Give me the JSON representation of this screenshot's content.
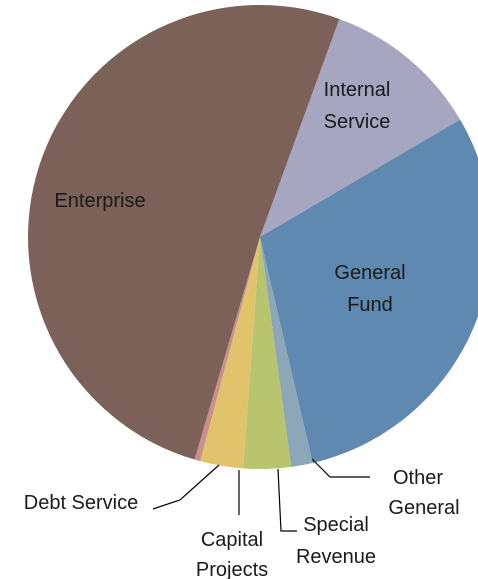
{
  "chart_data": {
    "type": "pie",
    "title": "",
    "categories": [
      "Internal Service",
      "General Fund",
      "Other General",
      "Special Revenue",
      "Capital Projects",
      "Debt Service",
      "Enterprise"
    ],
    "labels": {
      "internal_service": [
        "Internal",
        "Service"
      ],
      "general_fund": [
        "General",
        "Fund"
      ],
      "other_general": [
        "Other",
        "General"
      ],
      "special_revenue": [
        "Special",
        "Revenue"
      ],
      "capital_projects": [
        "Capital",
        "Projects"
      ],
      "debt_service": [
        "Debt Service"
      ],
      "enterprise": [
        "Enterprise"
      ]
    },
    "values": [
      11.0,
      29.8,
      1.5,
      3.3,
      3.0,
      0.4,
      51.0
    ],
    "colors": [
      "#a6a6c0",
      "#5f89b0",
      "#8ea7b8",
      "#b8c46e",
      "#e1c36c",
      "#c98f8a",
      "#7b6157"
    ],
    "start_angle_deg": 20,
    "legend": "none"
  }
}
